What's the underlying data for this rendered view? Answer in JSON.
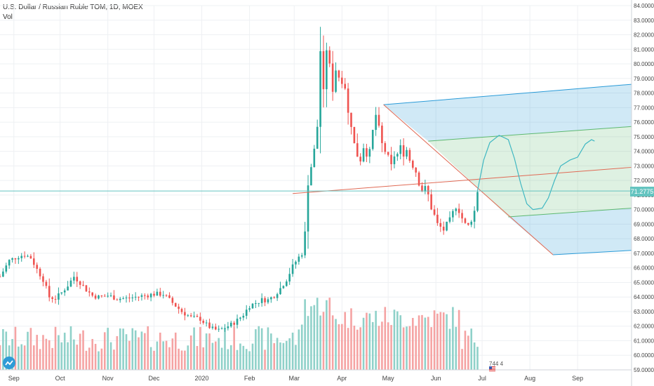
{
  "header": {
    "symbol_title": "U.S. Dollar / Russian Ruble TOM, 1D, MOEX",
    "volume_label": "Vol"
  },
  "last_price_tag": "71.2775",
  "event_badge": "744 4",
  "colors": {
    "up": "#26a69a",
    "down": "#ef5350",
    "vol_up": "#8fd1c9",
    "vol_down": "#f5a3a3",
    "channel_blue": "#2a9bd8",
    "channel_green": "#5cb870",
    "median_red": "#e06a55",
    "price_line": "#64c4c0",
    "grid": "#eef0f3"
  },
  "chart_data": {
    "type": "candlestick",
    "y_axis": {
      "min": 59.0,
      "max": 84.0,
      "side": "right",
      "ticks": [
        "84.0000",
        "83.0000",
        "82.0000",
        "81.0000",
        "80.0000",
        "79.0000",
        "78.0000",
        "77.0000",
        "76.0000",
        "75.0000",
        "74.0000",
        "73.0000",
        "72.0000",
        "71.0000",
        "70.0000",
        "69.0000",
        "68.0000",
        "67.0000",
        "66.0000",
        "65.0000",
        "64.0000",
        "63.0000",
        "62.0000",
        "61.0000",
        "60.0000",
        "59.0000"
      ]
    },
    "x_axis": {
      "labels": [
        {
          "label": "Sep",
          "index": 9
        },
        {
          "label": "Oct",
          "index": 39
        },
        {
          "label": "Nov",
          "index": 70
        },
        {
          "label": "Dec",
          "index": 100
        },
        {
          "label": "2020",
          "index": 131
        },
        {
          "label": "Feb",
          "index": 162
        },
        {
          "label": "Mar",
          "index": 191
        },
        {
          "label": "Apr",
          "index": 222
        },
        {
          "label": "May",
          "index": 252
        },
        {
          "label": "Jun",
          "index": 283
        },
        {
          "label": "Jul",
          "index": 313
        },
        {
          "label": "Aug",
          "index": 344
        },
        {
          "label": "Sep",
          "index": 375
        }
      ],
      "range": [
        0,
        410
      ]
    },
    "price_keypoints": [
      [
        0,
        65.4
      ],
      [
        6,
        66.5
      ],
      [
        12,
        66.8
      ],
      [
        16,
        66.9
      ],
      [
        20,
        66.7
      ],
      [
        24,
        65.9
      ],
      [
        28,
        65.2
      ],
      [
        32,
        64.0
      ],
      [
        36,
        63.9
      ],
      [
        40,
        64.3
      ],
      [
        44,
        64.8
      ],
      [
        48,
        65.4
      ],
      [
        52,
        65.0
      ],
      [
        56,
        64.5
      ],
      [
        60,
        64.1
      ],
      [
        64,
        64.0
      ],
      [
        70,
        64.1
      ],
      [
        76,
        63.9
      ],
      [
        82,
        63.9
      ],
      [
        88,
        64.0
      ],
      [
        94,
        64.1
      ],
      [
        100,
        64.2
      ],
      [
        106,
        64.2
      ],
      [
        112,
        63.6
      ],
      [
        118,
        63.0
      ],
      [
        124,
        62.6
      ],
      [
        130,
        62.5
      ],
      [
        134,
        62.1
      ],
      [
        138,
        61.8
      ],
      [
        142,
        61.7
      ],
      [
        146,
        61.9
      ],
      [
        150,
        62.1
      ],
      [
        154,
        62.4
      ],
      [
        158,
        62.8
      ],
      [
        162,
        63.4
      ],
      [
        166,
        63.6
      ],
      [
        170,
        63.8
      ],
      [
        174,
        63.8
      ],
      [
        178,
        64.1
      ],
      [
        182,
        64.6
      ],
      [
        186,
        65.2
      ],
      [
        190,
        66.1
      ],
      [
        193,
        66.6
      ],
      [
        196,
        67.0
      ],
      [
        198,
        68.4
      ],
      [
        199,
        71.3
      ],
      [
        201,
        72.3
      ],
      [
        203,
        73.6
      ],
      [
        205,
        74.6
      ],
      [
        206,
        75.7
      ],
      [
        207,
        77.4
      ],
      [
        208,
        80.9
      ],
      [
        210,
        78.1
      ],
      [
        212,
        81.0
      ],
      [
        214,
        79.9
      ],
      [
        216,
        78.2
      ],
      [
        218,
        79.6
      ],
      [
        220,
        79.1
      ],
      [
        222,
        78.8
      ],
      [
        224,
        78.4
      ],
      [
        226,
        76.6
      ],
      [
        228,
        75.8
      ],
      [
        230,
        74.5
      ],
      [
        232,
        73.7
      ],
      [
        234,
        73.4
      ],
      [
        236,
        74.3
      ],
      [
        238,
        73.8
      ],
      [
        240,
        74.0
      ],
      [
        242,
        75.4
      ],
      [
        244,
        76.5
      ],
      [
        246,
        75.6
      ],
      [
        248,
        74.5
      ],
      [
        250,
        74.0
      ],
      [
        252,
        73.6
      ],
      [
        254,
        73.0
      ],
      [
        256,
        73.7
      ],
      [
        258,
        73.8
      ],
      [
        260,
        74.3
      ],
      [
        262,
        73.8
      ],
      [
        264,
        74.1
      ],
      [
        266,
        73.4
      ],
      [
        268,
        73.0
      ],
      [
        270,
        72.6
      ],
      [
        272,
        71.8
      ],
      [
        274,
        71.3
      ],
      [
        276,
        71.5
      ],
      [
        278,
        71.0
      ],
      [
        280,
        70.1
      ],
      [
        282,
        69.6
      ],
      [
        284,
        69.0
      ],
      [
        286,
        68.8
      ],
      [
        288,
        68.6
      ],
      [
        290,
        69.0
      ],
      [
        292,
        69.3
      ],
      [
        294,
        69.8
      ],
      [
        296,
        70.2
      ],
      [
        298,
        69.9
      ],
      [
        300,
        69.4
      ],
      [
        302,
        69.0
      ],
      [
        304,
        68.9
      ],
      [
        306,
        69.3
      ],
      [
        308,
        69.9
      ],
      [
        310,
        71.28
      ]
    ],
    "last_close": 71.2775,
    "volume_scale_max": 100,
    "drawings": {
      "pitchfork": {
        "pivot": [
          190,
          71.1
        ],
        "point_b": [
          249,
          77.2
        ],
        "point_c": [
          359,
          66.9
        ],
        "median_end": [
          410,
          72.9
        ],
        "upper_end": [
          410,
          78.6
        ],
        "lower_end": [
          410,
          67.2
        ],
        "inner_upper_start": [
          278,
          74.7
        ],
        "inner_upper_end": [
          410,
          75.7
        ],
        "inner_lower_start": [
          330,
          69.5
        ],
        "inner_lower_end": [
          410,
          70.1
        ]
      },
      "projection_curve": [
        [
          310,
          71.3
        ],
        [
          314,
          73.4
        ],
        [
          318,
          74.6
        ],
        [
          324,
          75.1
        ],
        [
          330,
          74.8
        ],
        [
          334,
          73.5
        ],
        [
          338,
          71.8
        ],
        [
          342,
          70.4
        ],
        [
          346,
          70.0
        ],
        [
          352,
          70.1
        ],
        [
          356,
          70.8
        ],
        [
          360,
          72.0
        ],
        [
          364,
          73.0
        ],
        [
          370,
          73.4
        ],
        [
          375,
          73.6
        ],
        [
          380,
          74.5
        ],
        [
          384,
          74.8
        ],
        [
          386,
          74.7
        ]
      ]
    }
  }
}
